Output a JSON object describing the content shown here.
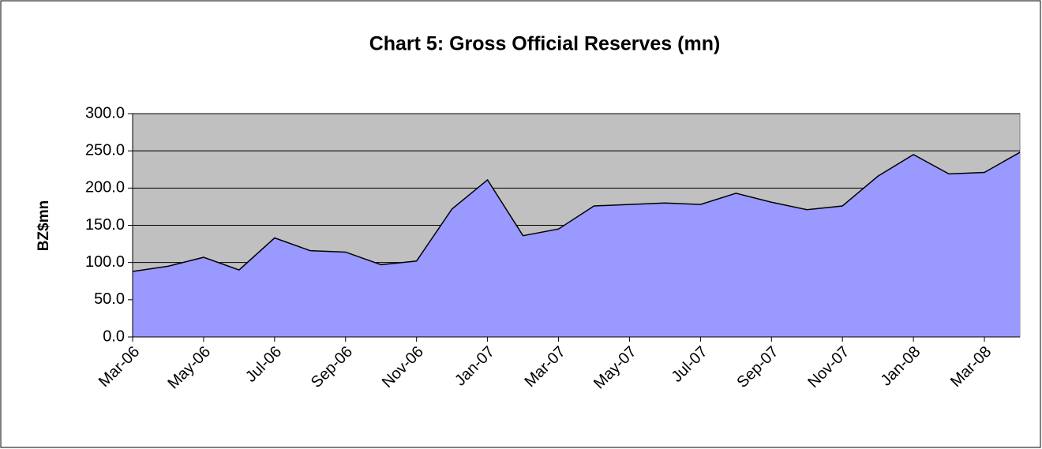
{
  "chart_data": {
    "type": "area",
    "title": "Chart 5: Gross Official Reserves (mn)",
    "y_label": "BZ$mn",
    "categories": [
      "Mar-06",
      null,
      "May-06",
      null,
      "Jul-06",
      null,
      "Sep-06",
      null,
      "Nov-06",
      null,
      "Jan-07",
      null,
      "Mar-07",
      null,
      "May-07",
      null,
      "Jul-07",
      null,
      "Sep-07",
      null,
      "Nov-07",
      null,
      "Jan-08",
      null,
      "Mar-08",
      null
    ],
    "values": [
      88,
      95,
      107,
      90,
      133,
      116,
      114,
      97,
      102,
      172,
      211,
      136,
      145,
      176,
      178,
      180,
      178,
      193,
      181,
      171,
      176,
      216,
      245,
      219,
      221,
      248
    ],
    "color": "#9999ff",
    "ylim": [
      0,
      300
    ],
    "yticks": [
      {
        "value": 0,
        "label": "0.0"
      },
      {
        "value": 50,
        "label": "50.0"
      },
      {
        "value": 100,
        "label": "100.0"
      },
      {
        "value": 150,
        "label": "150.0"
      },
      {
        "value": 200,
        "label": "200.0"
      },
      {
        "value": 250,
        "label": "250.0"
      },
      {
        "value": 300,
        "label": "300.0"
      }
    ],
    "grid": true
  }
}
